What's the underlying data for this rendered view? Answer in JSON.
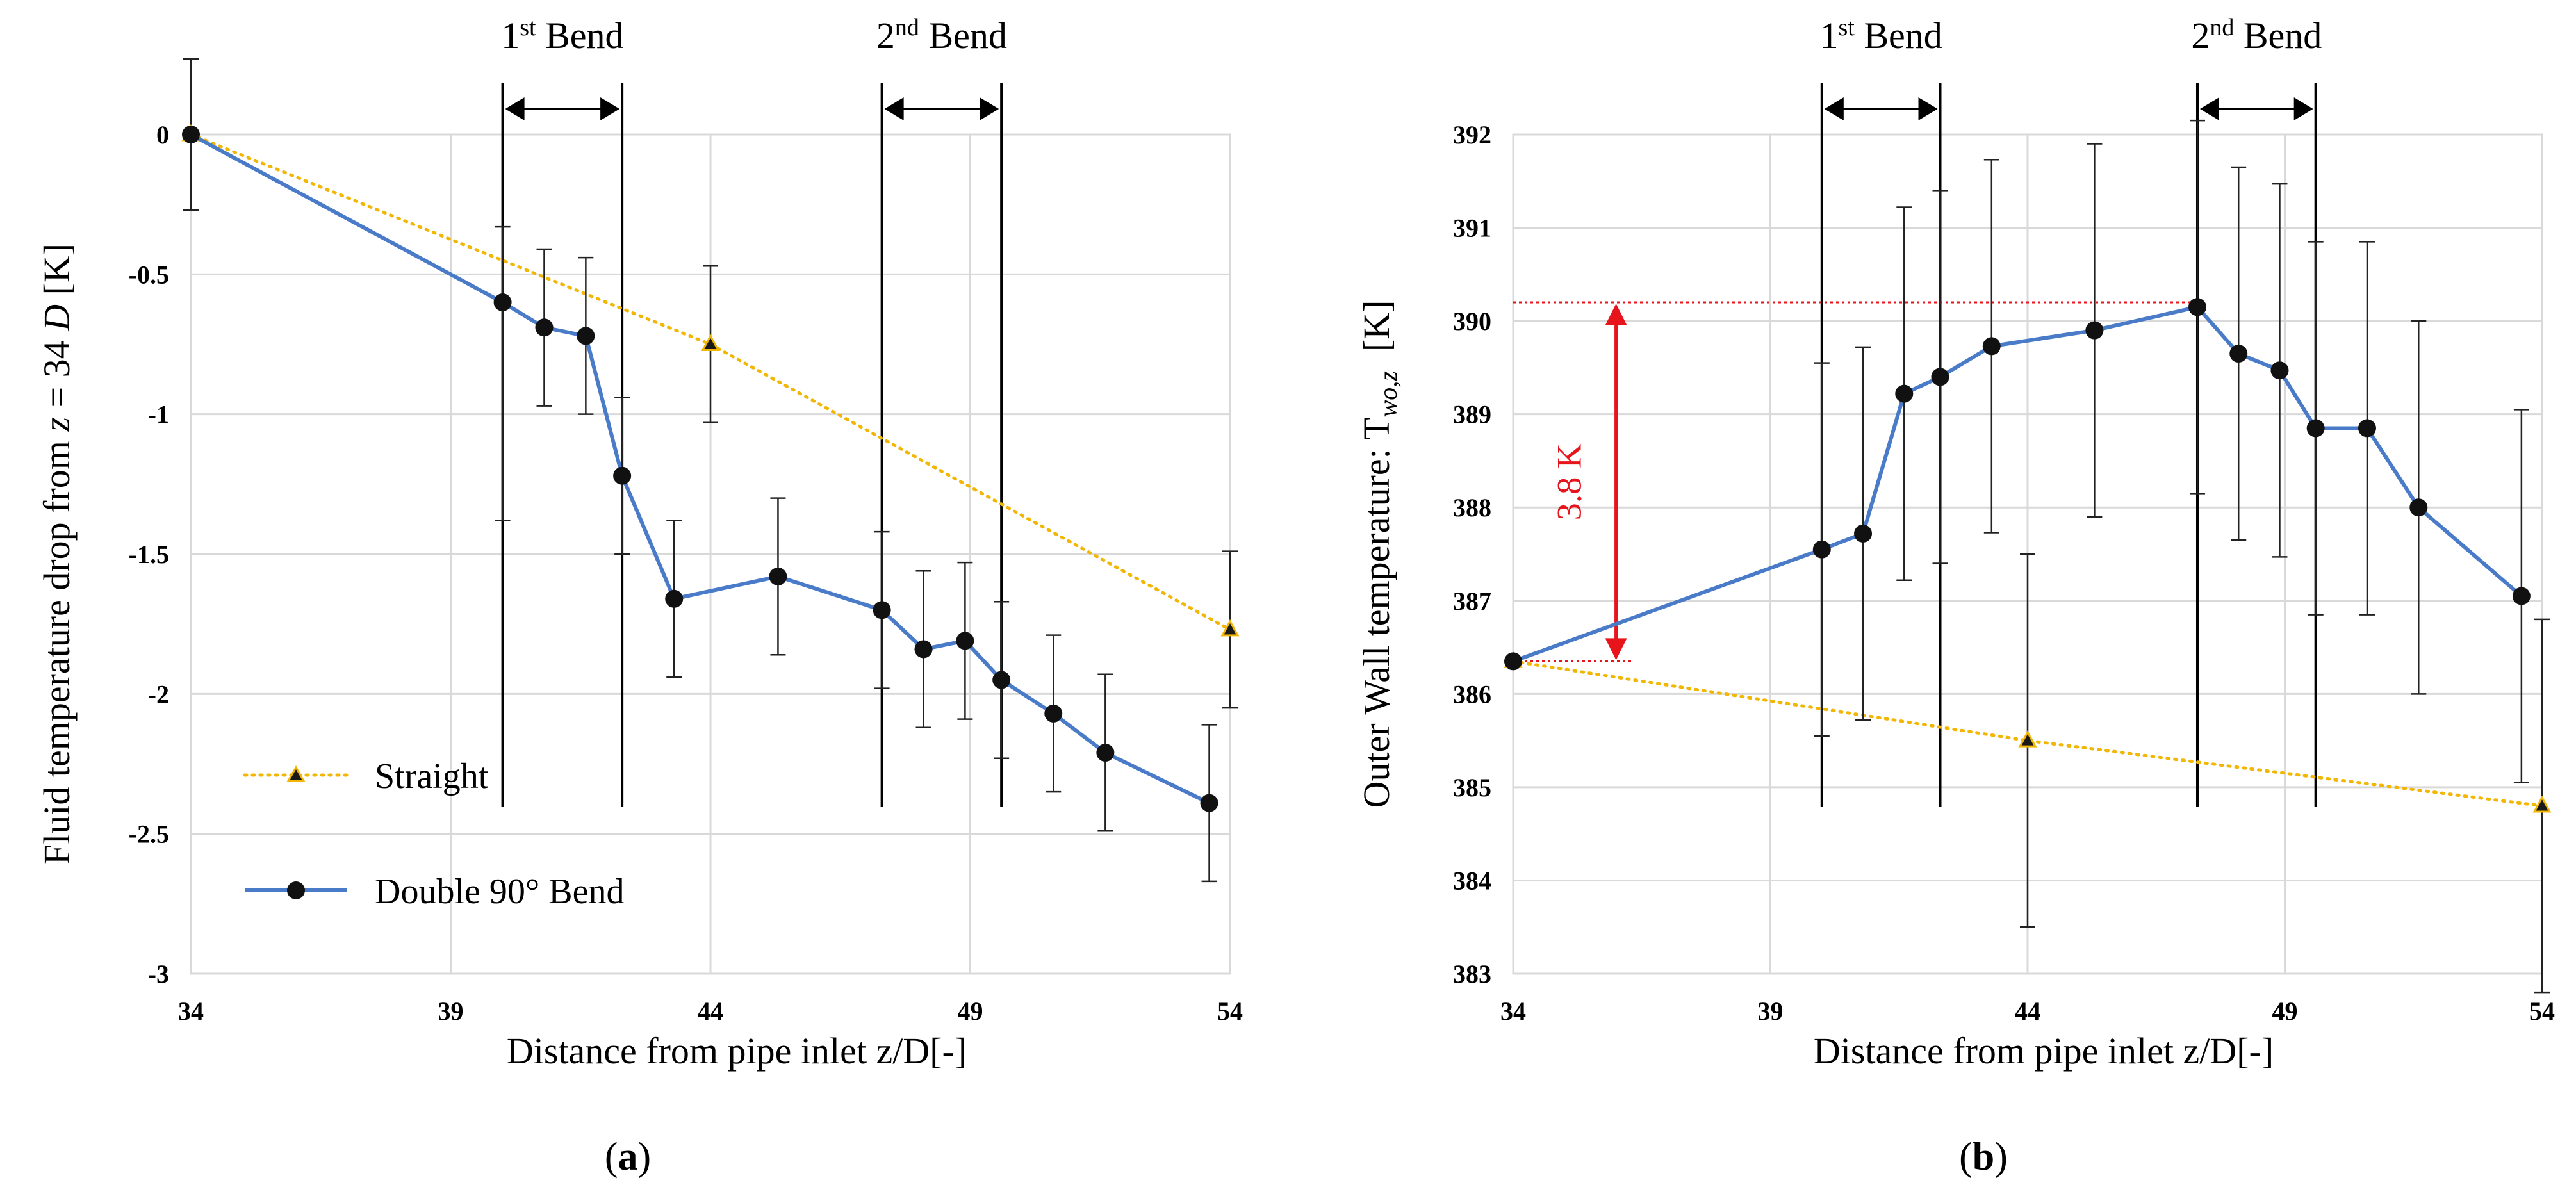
{
  "chart_data": [
    {
      "type": "line",
      "panel_label": "(a)",
      "xlabel": "Distance from pipe inlet z/D[-]",
      "ylabel": "Fluid temperature drop from z = 34 D [K]",
      "xlim": [
        34,
        54
      ],
      "ylim": [
        -3,
        0
      ],
      "xticks": [
        "34",
        "39",
        "44",
        "49",
        "54"
      ],
      "xtick_values": [
        34,
        39,
        44,
        49,
        54
      ],
      "yticks": [
        "0",
        "-0.5",
        "-1",
        "-1.5",
        "-2",
        "-2.5",
        "-3"
      ],
      "ytick_values": [
        0,
        -0.5,
        -1,
        -1.5,
        -2,
        -2.5,
        -3
      ],
      "grid": true,
      "bends": [
        {
          "label": "1st Bend",
          "base": "1",
          "sup": "st",
          "word": " Bend",
          "start": 40.0,
          "end": 42.3
        },
        {
          "label": "2nd Bend",
          "base": "2",
          "sup": "nd",
          "word": " Bend",
          "start": 47.3,
          "end": 49.6
        }
      ],
      "legend": {
        "placement": "bottom-left",
        "entries": [
          "Straight",
          "Double 90° Bend"
        ]
      },
      "series": [
        {
          "name": "Straight",
          "color": "#f2b705",
          "style": "dotted",
          "marker": "triangle",
          "x": [
            34,
            44,
            54
          ],
          "y": [
            0,
            -0.75,
            -1.77
          ],
          "err": [
            0.27,
            0.28,
            0.28
          ]
        },
        {
          "name": "Double 90° Bend",
          "color": "#4a7bc8",
          "style": "solid",
          "marker": "circle",
          "x": [
            34,
            40.0,
            40.8,
            41.6,
            42.3,
            43.3,
            45.3,
            47.3,
            48.1,
            48.9,
            49.6,
            50.6,
            51.6,
            53.6
          ],
          "y": [
            0,
            -0.6,
            -0.69,
            -0.72,
            -1.22,
            -1.66,
            -1.58,
            -1.7,
            -1.84,
            -1.81,
            -1.95,
            -2.07,
            -2.21,
            -2.39
          ],
          "err": [
            0,
            0.78,
            0.28,
            0.28,
            0.28,
            0.28,
            0.28,
            0.28,
            0.28,
            0.28,
            0.28,
            0.28,
            0.28,
            0.28
          ],
          "err_upper": [
            0,
            0.27,
            0.28,
            0.28,
            0.28,
            0.28,
            0.28,
            0.28,
            0.28,
            0.28,
            0.28,
            0.28,
            0.28,
            0.28
          ]
        }
      ]
    },
    {
      "type": "line",
      "panel_label": "(b)",
      "xlabel": "Distance from pipe inlet z/D[-]",
      "ylabel": "Outer Wall temperature: T",
      "ylabel_subscript": "wo,z",
      "ylabel_unit": "[K]",
      "xlim": [
        34,
        54
      ],
      "ylim": [
        383,
        392
      ],
      "xticks": [
        "34",
        "39",
        "44",
        "49",
        "54"
      ],
      "xtick_values": [
        34,
        39,
        44,
        49,
        54
      ],
      "yticks": [
        "392",
        "391",
        "390",
        "389",
        "388",
        "387",
        "386",
        "385",
        "384",
        "383"
      ],
      "ytick_values": [
        392,
        391,
        390,
        389,
        388,
        387,
        386,
        385,
        384,
        383
      ],
      "grid": true,
      "bends": [
        {
          "label": "1st Bend",
          "base": "1",
          "sup": "st",
          "word": " Bend",
          "start": 40.0,
          "end": 42.3
        },
        {
          "label": "2nd Bend",
          "base": "2",
          "sup": "nd",
          "word": " Bend",
          "start": 47.3,
          "end": 49.6
        }
      ],
      "annotation": {
        "text": "3.8 K",
        "x": 36.0,
        "y_low": 386.35,
        "y_high": 390.2,
        "color": "#e8141b"
      },
      "series": [
        {
          "name": "Straight",
          "color": "#f2b705",
          "style": "dotted",
          "marker": "triangle",
          "x": [
            34,
            44,
            54
          ],
          "y": [
            386.35,
            385.5,
            384.8
          ],
          "err": [
            0,
            2.0,
            2.0
          ]
        },
        {
          "name": "Double 90° Bend",
          "color": "#4a7bc8",
          "style": "solid",
          "marker": "circle",
          "x": [
            34,
            40.0,
            40.8,
            41.6,
            42.3,
            43.3,
            45.3,
            47.3,
            48.1,
            48.9,
            49.6,
            50.6,
            51.6,
            53.6
          ],
          "y": [
            386.35,
            387.55,
            387.72,
            389.22,
            389.4,
            389.73,
            389.9,
            390.15,
            389.65,
            389.47,
            388.85,
            388.85,
            388.0,
            387.05
          ],
          "err": [
            0,
            2.0,
            2.0,
            2.0,
            2.0,
            2.0,
            2.0,
            2.0,
            2.0,
            2.0,
            2.0,
            2.0,
            2.0,
            2.0
          ]
        }
      ]
    }
  ]
}
